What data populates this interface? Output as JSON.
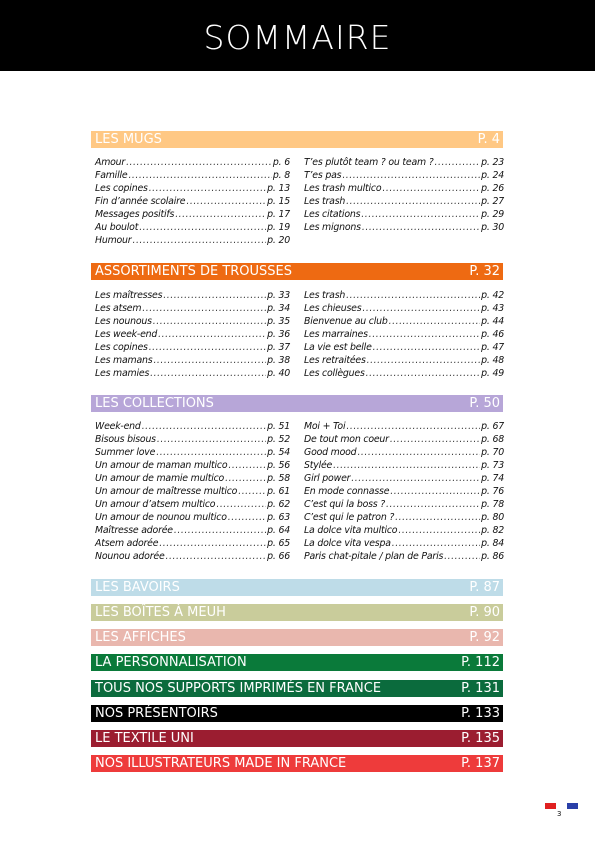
{
  "header": {
    "title": "SOMMAIRE"
  },
  "sections": [
    {
      "label": "LES MUGS",
      "page": "P. 4",
      "color": "#FFC884",
      "left": [
        {
          "title": "Amour",
          "page": "p. 6"
        },
        {
          "title": "Famille",
          "page": "p. 8"
        },
        {
          "title": "Les copines",
          "page": "p. 13"
        },
        {
          "title": "Fin d’année scolaire",
          "page": "p. 15"
        },
        {
          "title": "Messages positifs",
          "page": "p. 17"
        },
        {
          "title": "Au boulot",
          "page": "p. 19"
        },
        {
          "title": "Humour",
          "page": "p. 20"
        }
      ],
      "right": [
        {
          "title": "T’es plutôt team ? ou team ?",
          "page": "p. 23"
        },
        {
          "title": "T’es pas",
          "page": "p. 24"
        },
        {
          "title": "Les trash multico",
          "page": "p. 26"
        },
        {
          "title": "Les trash",
          "page": "p. 27"
        },
        {
          "title": "Les citations",
          "page": "p. 29"
        },
        {
          "title": "Les mignons",
          "page": "p. 30"
        }
      ]
    },
    {
      "label": "ASSORTIMENTS DE TROUSSES",
      "page": "P. 32",
      "color": "#EE6A12",
      "left": [
        {
          "title": "Les maîtresses",
          "page": "p. 33"
        },
        {
          "title": "Les atsem",
          "page": "p. 34"
        },
        {
          "title": "Les nounous",
          "page": "p. 35"
        },
        {
          "title": "Les week-end",
          "page": "p. 36"
        },
        {
          "title": "Les copines",
          "page": "p. 37"
        },
        {
          "title": "Les mamans",
          "page": "p. 38"
        },
        {
          "title": "Les mamies",
          "page": "p. 40"
        }
      ],
      "right": [
        {
          "title": "Les trash",
          "page": "p. 42"
        },
        {
          "title": "Les chieuses",
          "page": "p. 43"
        },
        {
          "title": "Bienvenue au club",
          "page": "p. 44"
        },
        {
          "title": "Les marraines",
          "page": "p. 46"
        },
        {
          "title": "La vie est belle",
          "page": "p. 47"
        },
        {
          "title": "Les retraitées",
          "page": "p. 48"
        },
        {
          "title": "Les collègues",
          "page": "p. 49"
        }
      ]
    },
    {
      "label": "LES COLLECTIONS",
      "page": "P. 50",
      "color": "#B7A6D8",
      "left": [
        {
          "title": "Week-end",
          "page": "p. 51"
        },
        {
          "title": "Bisous bisous",
          "page": "p. 52"
        },
        {
          "title": "Summer love",
          "page": "p. 54"
        },
        {
          "title": "Un amour de maman multico",
          "page": "p. 56"
        },
        {
          "title": "Un amour de mamie multico",
          "page": "p. 58"
        },
        {
          "title": "Un amour de maîtresse multico",
          "page": "p. 61"
        },
        {
          "title": "Un amour d’atsem multico",
          "page": "p. 62"
        },
        {
          "title": "Un amour de nounou multico",
          "page": "p. 63"
        },
        {
          "title": "Maîtresse adorée",
          "page": "p. 64"
        },
        {
          "title": "Atsem adorée",
          "page": "p. 65"
        },
        {
          "title": "Nounou adorée",
          "page": "p. 66"
        }
      ],
      "right": [
        {
          "title": "Moi + Toi",
          "page": "p. 67"
        },
        {
          "title": "De tout mon coeur",
          "page": "p. 68"
        },
        {
          "title": "Good mood",
          "page": "p. 70"
        },
        {
          "title": "Stylée",
          "page": "p. 73"
        },
        {
          "title": "Girl power",
          "page": "p. 74"
        },
        {
          "title": "En mode connasse",
          "page": "p. 76"
        },
        {
          "title": "C’est qui la boss ?",
          "page": "p. 78"
        },
        {
          "title": "C’est qui le patron ?",
          "page": "p. 80"
        },
        {
          "title": "La dolce vita multico",
          "page": "p. 82"
        },
        {
          "title": "La dolce vita vespa",
          "page": "p. 84"
        },
        {
          "title": "Paris chat-pitale / plan de Paris",
          "page": "p. 86"
        }
      ]
    },
    {
      "label": "LES BAVOIRS",
      "page": "P. 87",
      "color": "#BEDCE8"
    },
    {
      "label": "LES BOÎTES À MEUH",
      "page": "P. 90",
      "color": "#C9CC9B"
    },
    {
      "label": "LES AFFICHES",
      "page": "P. 92",
      "color": "#E9B7AE"
    },
    {
      "label": "LA PERSONNALISATION",
      "page": "P. 112",
      "color": "#0A7A3A"
    },
    {
      "label": "TOUS NOS SUPPORTS IMPRIMÉS EN FRANCE",
      "page": "P. 131",
      "color": "#0B6B3D"
    },
    {
      "label": "NOS PRÉSENTOIRS",
      "page": "P. 133",
      "color": "#000000"
    },
    {
      "label": "LE TEXTILE UNI",
      "page": "P. 135",
      "color": "#9B1D30"
    },
    {
      "label": "NOS ILLUSTRATEURS MADE IN FRANCE",
      "page": "P. 137",
      "color": "#EE3B3B"
    }
  ],
  "footer": {
    "page_number": "3",
    "flag_left_color": "#E02020",
    "flag_right_color": "#2A3FA8"
  }
}
